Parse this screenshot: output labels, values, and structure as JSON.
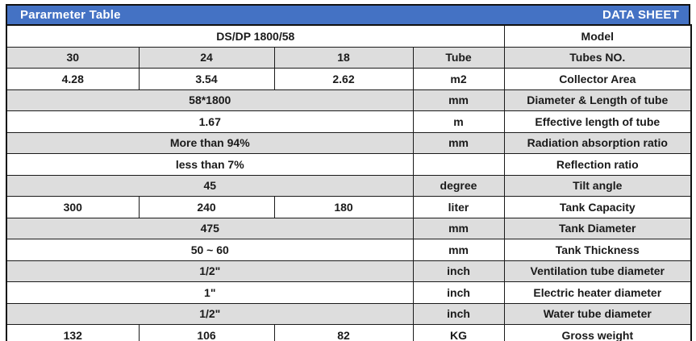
{
  "title_bar": {
    "left_label": "Pararmeter Table",
    "right_label": "DATA SHEET"
  },
  "colors": {
    "title_bar_bg": "#4472C4",
    "title_bar_text": "#FFFFFF",
    "shaded_row_bg": "#DDDDDD",
    "plain_row_bg": "#FFFFFF",
    "border": "#1a1a1a"
  },
  "table": {
    "rows": [
      {
        "shaded": false,
        "cells": [
          {
            "text": "DS/DP 1800/58",
            "span": 4
          },
          {
            "text": "Model",
            "span": 1
          }
        ]
      },
      {
        "shaded": true,
        "cells": [
          {
            "text": "30"
          },
          {
            "text": "24"
          },
          {
            "text": "18"
          },
          {
            "text": "Tube"
          },
          {
            "text": "Tubes NO."
          }
        ]
      },
      {
        "shaded": false,
        "cells": [
          {
            "text": "4.28"
          },
          {
            "text": "3.54"
          },
          {
            "text": "2.62"
          },
          {
            "text": "m2"
          },
          {
            "text": "Collector Area"
          }
        ]
      },
      {
        "shaded": true,
        "cells": [
          {
            "text": "58*1800",
            "span": 3
          },
          {
            "text": "mm"
          },
          {
            "text": "Diameter & Length of tube"
          }
        ]
      },
      {
        "shaded": false,
        "cells": [
          {
            "text": "1.67",
            "span": 3
          },
          {
            "text": "m"
          },
          {
            "text": "Effective length of tube"
          }
        ]
      },
      {
        "shaded": true,
        "cells": [
          {
            "text": "More than 94%",
            "span": 3
          },
          {
            "text": "mm"
          },
          {
            "text": "Radiation absorption ratio"
          }
        ]
      },
      {
        "shaded": false,
        "cells": [
          {
            "text": "less than 7%",
            "span": 3
          },
          {
            "text": ""
          },
          {
            "text": "Reflection ratio"
          }
        ]
      },
      {
        "shaded": true,
        "cells": [
          {
            "text": "45",
            "span": 3
          },
          {
            "text": "degree"
          },
          {
            "text": "Tilt angle"
          }
        ]
      },
      {
        "shaded": false,
        "cells": [
          {
            "text": "300"
          },
          {
            "text": "240"
          },
          {
            "text": "180"
          },
          {
            "text": "liter"
          },
          {
            "text": "Tank Capacity"
          }
        ]
      },
      {
        "shaded": true,
        "cells": [
          {
            "text": "475",
            "span": 3
          },
          {
            "text": "mm"
          },
          {
            "text": "Tank Diameter"
          }
        ]
      },
      {
        "shaded": false,
        "cells": [
          {
            "text": "50 ~ 60",
            "span": 3
          },
          {
            "text": "mm"
          },
          {
            "text": "Tank Thickness"
          }
        ]
      },
      {
        "shaded": true,
        "cells": [
          {
            "text": "1/2\"",
            "span": 3
          },
          {
            "text": "inch"
          },
          {
            "text": "Ventilation tube diameter"
          }
        ]
      },
      {
        "shaded": false,
        "cells": [
          {
            "text": "1\"",
            "span": 3
          },
          {
            "text": "inch"
          },
          {
            "text": "Electric heater diameter"
          }
        ]
      },
      {
        "shaded": true,
        "cells": [
          {
            "text": "1/2\"",
            "span": 3
          },
          {
            "text": "inch"
          },
          {
            "text": "Water tube diameter"
          }
        ]
      },
      {
        "shaded": false,
        "cells": [
          {
            "text": "132"
          },
          {
            "text": "106"
          },
          {
            "text": "82"
          },
          {
            "text": "KG"
          },
          {
            "text": "Gross weight"
          }
        ]
      }
    ]
  }
}
